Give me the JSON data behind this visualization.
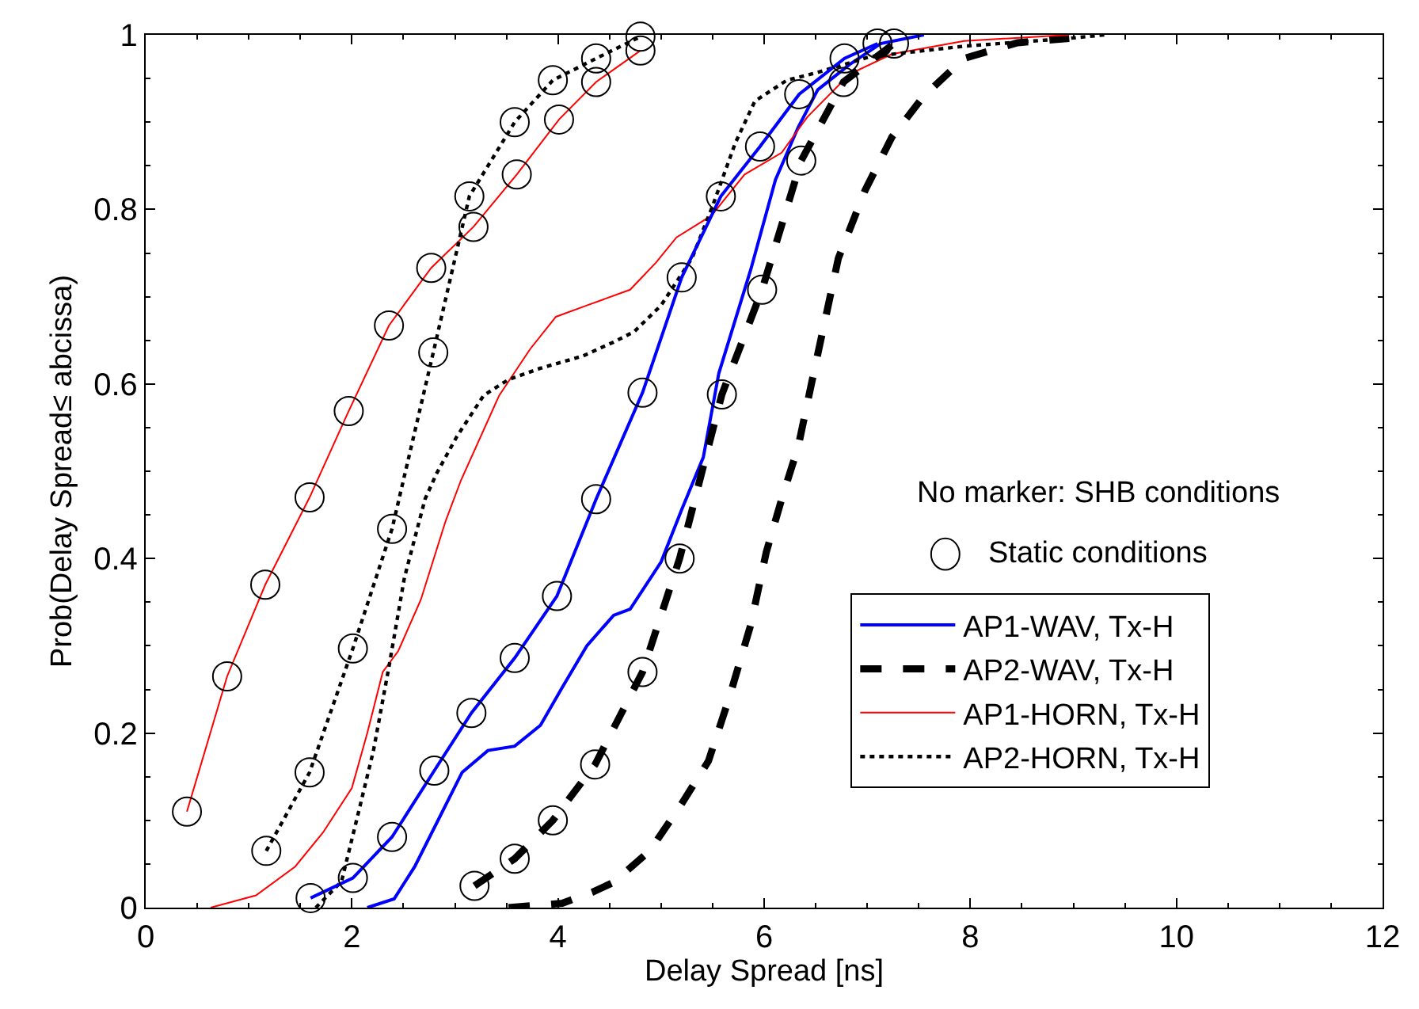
{
  "chart_data": {
    "type": "line",
    "xlabel": "Delay Spread [ns]",
    "ylabel": "Prob(Delay Spread≤ abcissa)",
    "xlim": [
      0,
      12
    ],
    "xticks": [
      0,
      2,
      4,
      6,
      8,
      10,
      12
    ],
    "ylim": [
      0,
      1
    ],
    "yticks": [
      0,
      0.2,
      0.4,
      0.6,
      0.8,
      1
    ],
    "legend": "bottom right",
    "annotations": [
      "No marker: SHB conditions",
      "Static conditions"
    ],
    "series": [
      {
        "name": "AP1-WAV, Tx-H",
        "color": "#0000ff",
        "line_style": "solid",
        "marker": "none",
        "x": [
          2.15,
          2.41,
          2.61,
          2.87,
          3.07,
          3.32,
          3.58,
          3.83,
          4.04,
          4.28,
          4.54,
          4.7,
          5.0,
          5.2,
          5.41,
          5.56,
          5.87,
          6.11,
          6.33,
          6.52,
          6.83,
          7.13,
          7.55
        ],
        "values": [
          0,
          0.01,
          0.047,
          0.108,
          0.155,
          0.18,
          0.185,
          0.209,
          0.252,
          0.3,
          0.335,
          0.342,
          0.396,
          0.456,
          0.516,
          0.612,
          0.731,
          0.834,
          0.894,
          0.937,
          0.966,
          0.99,
          1
        ]
      },
      {
        "name": "AP2-WAV, Tx-H",
        "color": "#000000",
        "line_style": "dashed",
        "marker": "none",
        "x": [
          3.52,
          4.04,
          4.34,
          4.54,
          4.89,
          5.2,
          5.46,
          5.66,
          5.87,
          6.02,
          6.17,
          6.33,
          6.48,
          6.72,
          6.98,
          7.24,
          7.55,
          7.94,
          8.46,
          8.96
        ],
        "values": [
          0,
          0.005,
          0.018,
          0.029,
          0.065,
          0.119,
          0.168,
          0.24,
          0.324,
          0.407,
          0.468,
          0.528,
          0.612,
          0.744,
          0.822,
          0.883,
          0.93,
          0.973,
          0.991,
          0.996
        ]
      },
      {
        "name": "AP1-HORN, Tx-H",
        "color": "#ff0000",
        "line_style": "solid",
        "marker": "none",
        "x": [
          0.63,
          1.07,
          1.45,
          1.72,
          2.0,
          2.15,
          2.3,
          2.45,
          2.67,
          2.91,
          3.06,
          3.43,
          3.73,
          3.98,
          4.28,
          4.7,
          4.95,
          5.15,
          5.49,
          5.81,
          6.17,
          6.42,
          6.83,
          7.24,
          7.94,
          8.96
        ],
        "values": [
          0,
          0.014,
          0.047,
          0.086,
          0.137,
          0.2,
          0.27,
          0.294,
          0.353,
          0.443,
          0.49,
          0.587,
          0.64,
          0.677,
          0.69,
          0.708,
          0.739,
          0.768,
          0.793,
          0.84,
          0.865,
          0.906,
          0.955,
          0.978,
          0.993,
          1
        ]
      },
      {
        "name": "AP2-HORN, Tx-H",
        "color": "#000000",
        "line_style": "dotted",
        "marker": "none",
        "x": [
          1.65,
          1.9,
          2.06,
          2.21,
          2.36,
          2.51,
          2.71,
          2.82,
          3.02,
          3.28,
          3.52,
          3.83,
          4.24,
          4.54,
          4.74,
          5.0,
          5.3,
          5.5,
          5.72,
          5.91,
          6.22,
          6.52,
          7.03,
          7.94,
          8.96,
          9.3
        ],
        "values": [
          0,
          0.03,
          0.107,
          0.18,
          0.276,
          0.378,
          0.468,
          0.497,
          0.54,
          0.587,
          0.605,
          0.618,
          0.632,
          0.648,
          0.66,
          0.69,
          0.744,
          0.804,
          0.876,
          0.924,
          0.948,
          0.957,
          0.975,
          0.987,
          0.996,
          1
        ]
      },
      {
        "color": "#0000ff",
        "line_style": "solid",
        "marker": "circle",
        "x": [
          1.6,
          2.01,
          2.39,
          2.8,
          3.16,
          3.58,
          3.99,
          4.37,
          4.82,
          5.2,
          5.58,
          5.96,
          6.34,
          6.78,
          7.1
        ],
        "values": [
          0.011,
          0.034,
          0.081,
          0.157,
          0.223,
          0.286,
          0.357,
          0.468,
          0.59,
          0.722,
          0.815,
          0.872,
          0.932,
          0.973,
          0.99
        ]
      },
      {
        "color": "#000000",
        "line_style": "dashed",
        "marker": "circle",
        "x": [
          3.19,
          3.58,
          3.95,
          4.36,
          4.82,
          5.18,
          5.59,
          5.98,
          6.36,
          6.77,
          7.26
        ],
        "values": [
          0.025,
          0.056,
          0.1,
          0.164,
          0.27,
          0.4,
          0.588,
          0.708,
          0.856,
          0.946,
          0.99
        ]
      },
      {
        "color": "#ff0000",
        "line_style": "solid",
        "marker": "circle",
        "x": [
          0.4,
          0.79,
          1.16,
          1.59,
          1.97,
          2.36,
          2.77,
          3.18,
          3.6,
          4.01,
          4.37,
          4.8
        ],
        "values": [
          0.11,
          0.265,
          0.37,
          0.47,
          0.569,
          0.667,
          0.733,
          0.78,
          0.84,
          0.903,
          0.946,
          0.982
        ]
      },
      {
        "color": "#000000",
        "line_style": "dotted",
        "marker": "circle",
        "x": [
          1.17,
          1.59,
          2.01,
          2.39,
          2.79,
          3.14,
          3.58,
          3.95,
          4.37,
          4.8
        ],
        "values": [
          0.065,
          0.155,
          0.297,
          0.434,
          0.636,
          0.815,
          0.9,
          0.948,
          0.973,
          0.998
        ]
      }
    ]
  }
}
